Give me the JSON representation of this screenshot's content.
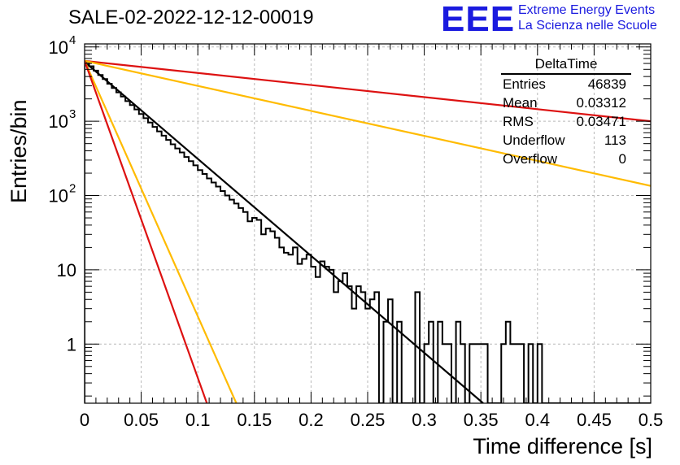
{
  "title": "SALE-02-2022-12-12-00019",
  "logo": {
    "mark": "EEE",
    "line1": "Extreme Energy Events",
    "line2": "La Scienza nelle Scuole",
    "color": "#1a1adf"
  },
  "stats": {
    "name": "DeltaTime",
    "rows": [
      {
        "label": "Entries",
        "value": "46839"
      },
      {
        "label": "Mean",
        "value": "0.03312"
      },
      {
        "label": "RMS",
        "value": "0.03471"
      },
      {
        "label": "Underflow",
        "value": "113"
      },
      {
        "label": "Overflow",
        "value": "0"
      }
    ]
  },
  "chart_data": {
    "type": "histogram",
    "xlabel": "Time difference [s]",
    "ylabel": "Entries/bin",
    "xlim": [
      0,
      0.5
    ],
    "ylim": [
      0.16,
      11000
    ],
    "yscale": "log",
    "grid": true,
    "xticks": [
      {
        "v": 0,
        "label": "0"
      },
      {
        "v": 0.05,
        "label": "0.05"
      },
      {
        "v": 0.1,
        "label": "0.1"
      },
      {
        "v": 0.15,
        "label": "0.15"
      },
      {
        "v": 0.2,
        "label": "0.2"
      },
      {
        "v": 0.25,
        "label": "0.25"
      },
      {
        "v": 0.3,
        "label": "0.3"
      },
      {
        "v": 0.35,
        "label": "0.35"
      },
      {
        "v": 0.4,
        "label": "0.4"
      },
      {
        "v": 0.45,
        "label": "0.45"
      },
      {
        "v": 0.5,
        "label": "0.5"
      }
    ],
    "yticks": [
      {
        "v": 1,
        "label": "1"
      },
      {
        "v": 10,
        "label": "10"
      },
      {
        "v": 100,
        "label": "10",
        "exp": "2"
      },
      {
        "v": 1000,
        "label": "10",
        "exp": "3"
      },
      {
        "v": 10000,
        "label": "10",
        "exp": "4"
      }
    ],
    "bin_width": 0.004,
    "bin_start": 0,
    "bin_contents": [
      6300,
      5500,
      4800,
      4200,
      3700,
      3200,
      2800,
      2450,
      2150,
      1870,
      1650,
      1440,
      1250,
      1100,
      960,
      840,
      730,
      640,
      560,
      490,
      430,
      380,
      330,
      290,
      255,
      220,
      195,
      170,
      150,
      132,
      115,
      100,
      88,
      78,
      68,
      60,
      45,
      50,
      47,
      30,
      36,
      33,
      27,
      20,
      17,
      16,
      20,
      12,
      14,
      16,
      11,
      8,
      13,
      11,
      10,
      5,
      7,
      9,
      6,
      3,
      6,
      5,
      3,
      4,
      5,
      0,
      2,
      4,
      0,
      2,
      0,
      0,
      0,
      0,
      0,
      0,
      0,
      0,
      0,
      0,
      0,
      0,
      0,
      0,
      0,
      0,
      0,
      0,
      0,
      0,
      0,
      0,
      0,
      0,
      0,
      0,
      0,
      0,
      0,
      0,
      0,
      0,
      0,
      0,
      0,
      0,
      0,
      0,
      0,
      0,
      0,
      0,
      0,
      0,
      0,
      0,
      0,
      0,
      0,
      0,
      0,
      0,
      0,
      0,
      0
    ],
    "sparse_bins": [
      {
        "x": 0.292,
        "count": 5
      },
      {
        "x": 0.3,
        "count": 1
      },
      {
        "x": 0.304,
        "count": 2
      },
      {
        "x": 0.312,
        "count": 2
      },
      {
        "x": 0.316,
        "count": 1
      },
      {
        "x": 0.32,
        "count": 1
      },
      {
        "x": 0.328,
        "count": 2
      },
      {
        "x": 0.332,
        "count": 1
      },
      {
        "x": 0.34,
        "count": 1
      },
      {
        "x": 0.344,
        "count": 1
      },
      {
        "x": 0.348,
        "count": 1
      },
      {
        "x": 0.352,
        "count": 1
      },
      {
        "x": 0.368,
        "count": 1
      },
      {
        "x": 0.372,
        "count": 2
      },
      {
        "x": 0.376,
        "count": 1
      },
      {
        "x": 0.38,
        "count": 1
      },
      {
        "x": 0.384,
        "count": 1
      },
      {
        "x": 0.392,
        "count": 1
      },
      {
        "x": 0.4,
        "count": 1
      }
    ],
    "fits": [
      {
        "color": "#000000",
        "y0": 6300,
        "y1": 0.16,
        "x1": 0.352
      },
      {
        "color": "#dd1111",
        "y0": 6500,
        "y1": 1000,
        "x1": 0.5
      },
      {
        "color": "#ffbb00",
        "y0": 6500,
        "y1": 135,
        "x1": 0.5
      },
      {
        "color": "#ffbb00",
        "y0": 6500,
        "y1": 0.16,
        "x1": 0.134
      },
      {
        "color": "#dd1111",
        "y0": 6500,
        "y1": 0.16,
        "x1": 0.108
      }
    ]
  }
}
